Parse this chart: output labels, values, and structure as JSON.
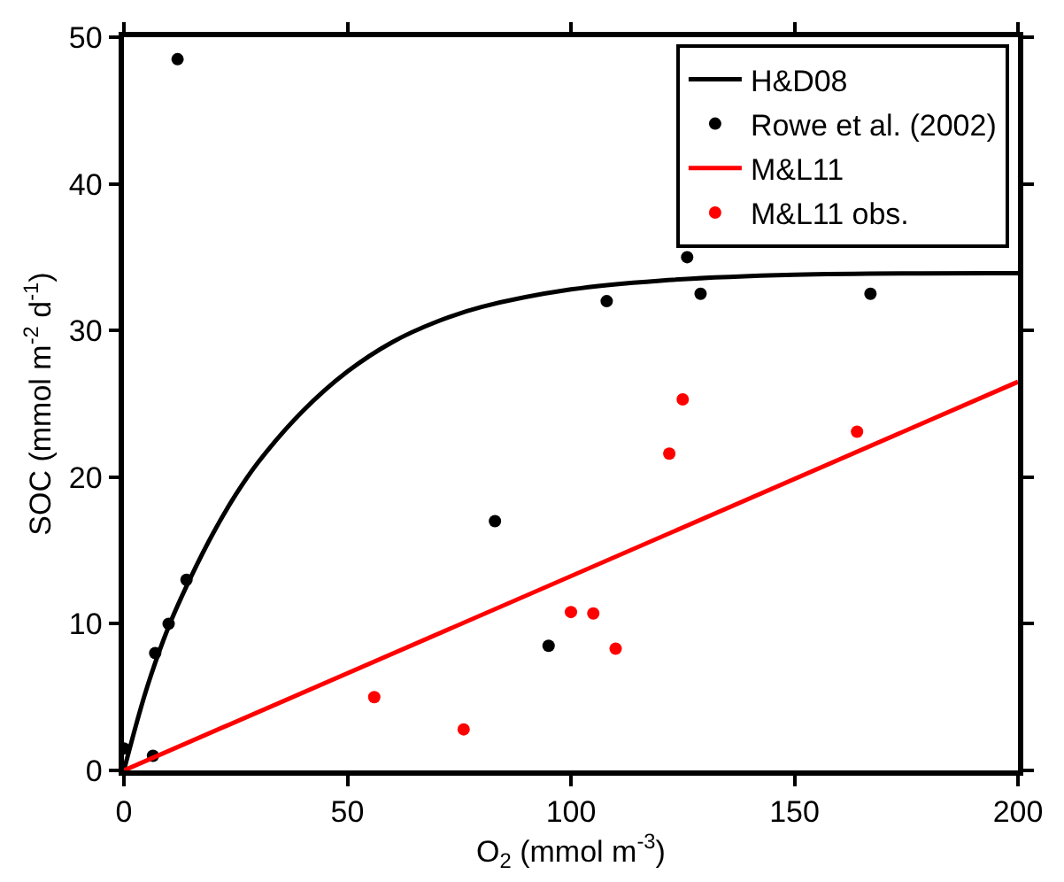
{
  "chart_data": {
    "type": "scatter",
    "xlabel": "O$_{2}$ (mmol m$^{-3}$)",
    "ylabel": "SOC (mmol m$^{-2}$ d$^{-1}$)",
    "xlim": [
      0,
      200
    ],
    "xticks": [
      0,
      50,
      100,
      150,
      200
    ],
    "ylim": [
      0,
      50
    ],
    "yticks": [
      0,
      10,
      20,
      30,
      40,
      50
    ],
    "legend": "top right",
    "series": [
      {
        "name": "H&D08",
        "type": "line",
        "color": "#000000",
        "marker": "none",
        "x": [
          0,
          5,
          10,
          15,
          20,
          25,
          30,
          40,
          50,
          60,
          70,
          80,
          100,
          120,
          150,
          200
        ],
        "values": [
          0,
          5.5,
          9.8,
          13.2,
          16.2,
          18.8,
          21,
          24.5,
          27.2,
          29.2,
          30.6,
          31.6,
          32.8,
          33.4,
          33.8,
          33.9
        ]
      },
      {
        "name": "Rowe et al. (2002)",
        "color": "#000000",
        "marker": "circle",
        "x": [
          0,
          6.5,
          7,
          10,
          14,
          12,
          83,
          95,
          108,
          126,
          129,
          167
        ],
        "values": [
          1.5,
          1,
          8,
          10,
          13,
          48.5,
          17,
          8.5,
          32,
          35,
          32.5,
          32.5
        ]
      },
      {
        "name": "M&L11",
        "type": "line",
        "color": "#ff0000",
        "marker": "none",
        "x": [
          0,
          200
        ],
        "values": [
          0,
          26.5
        ]
      },
      {
        "name": "M&L11 obs.",
        "color": "#ff0000",
        "marker": "circle",
        "x": [
          56,
          76,
          100,
          105,
          110,
          122,
          125,
          164
        ],
        "values": [
          5,
          2.8,
          10.8,
          10.7,
          8.3,
          21.6,
          25.3,
          23.1
        ]
      }
    ]
  }
}
